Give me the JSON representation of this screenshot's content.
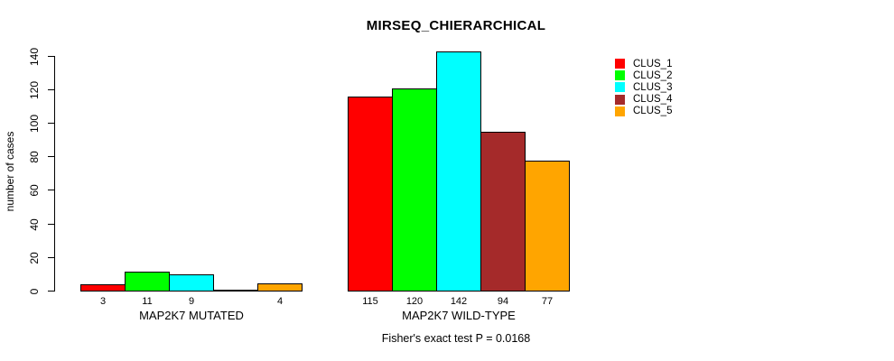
{
  "title": "MIRSEQ_CHIERARCHICAL",
  "footer": "Fisher's exact test P = 0.0168",
  "chart_data": {
    "type": "bar",
    "title": "MIRSEQ_CHIERARCHICAL",
    "xlabel": "",
    "ylabel": "number of cases",
    "ylim": [
      0,
      145
    ],
    "yticks": [
      0,
      20,
      40,
      60,
      80,
      100,
      120,
      140
    ],
    "grid": false,
    "legend_position": "right",
    "series_labels": [
      "CLUS_1",
      "CLUS_2",
      "CLUS_3",
      "CLUS_4",
      "CLUS_5"
    ],
    "colors": [
      "#FF0000",
      "#00FF00",
      "#00FFFF",
      "#A52A2A",
      "#FFA500"
    ],
    "groups": [
      {
        "label": "MAP2K7 MUTATED",
        "values": [
          3,
          11,
          9,
          0,
          4
        ]
      },
      {
        "label": "MAP2K7 WILD-TYPE",
        "values": [
          115,
          120,
          142,
          94,
          77
        ]
      }
    ],
    "value_labels": [
      [
        "3",
        "11",
        "9",
        "",
        "4"
      ],
      [
        "115",
        "120",
        "142",
        "94",
        "77"
      ]
    ],
    "annotation": "Fisher's exact test P = 0.0168"
  }
}
